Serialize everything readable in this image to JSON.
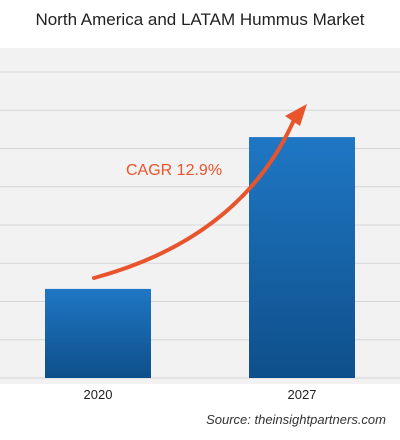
{
  "chart_data": {
    "type": "bar",
    "title": "North America and LATAM Hummus Market",
    "categories": [
      "2020",
      "2027"
    ],
    "values": [
      27,
      73
    ],
    "ylim": [
      0,
      100
    ],
    "grid": true,
    "annotation": "CAGR 12.9%",
    "source": "Source: theinsightpartners.com"
  },
  "colors": {
    "bar_top": "#1f77c4",
    "bar_bottom": "#0e4f8a",
    "arrow": "#e8542b",
    "grid": "#d6d6d6",
    "plot_bg": "#f2f2f2"
  }
}
